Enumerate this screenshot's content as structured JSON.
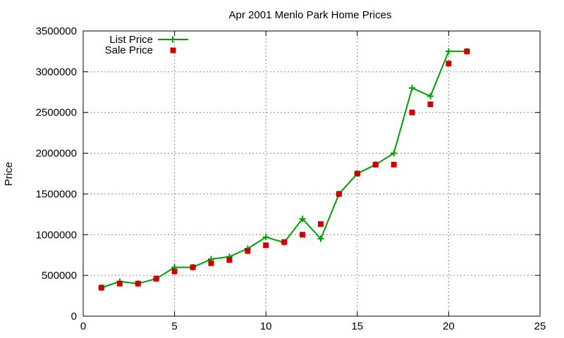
{
  "chart_data": {
    "type": "line",
    "title": "Apr 2001 Menlo Park Home Prices",
    "xlabel": "",
    "ylabel": "Price",
    "xlim": [
      0,
      25
    ],
    "ylim": [
      0,
      3500000
    ],
    "x_ticks": [
      0,
      5,
      10,
      15,
      20,
      25
    ],
    "y_ticks": [
      0,
      500000,
      1000000,
      1500000,
      2000000,
      2500000,
      3000000,
      3500000
    ],
    "grid": true,
    "legend_position": "top-left",
    "series": [
      {
        "name": "List Price",
        "style": "line-with-plus-markers",
        "color": "#00a000",
        "x": [
          1,
          2,
          3,
          4,
          5,
          6,
          7,
          8,
          9,
          10,
          11,
          12,
          13,
          14,
          15,
          16,
          17,
          18,
          19,
          20,
          21
        ],
        "y": [
          350000,
          425000,
          400000,
          460000,
          600000,
          600000,
          700000,
          730000,
          830000,
          970000,
          905000,
          1195000,
          950000,
          1500000,
          1750000,
          1860000,
          2000000,
          2800000,
          2700000,
          3250000,
          3250000
        ]
      },
      {
        "name": "Sale Price",
        "style": "square-markers",
        "color": "#cc0000",
        "x": [
          1,
          2,
          3,
          4,
          5,
          6,
          7,
          8,
          9,
          10,
          11,
          12,
          13,
          14,
          15,
          16,
          17,
          18,
          19,
          20,
          21
        ],
        "y": [
          350000,
          400000,
          400000,
          460000,
          550000,
          600000,
          650000,
          690000,
          800000,
          870000,
          910000,
          1000000,
          1130000,
          1500000,
          1750000,
          1860000,
          1860000,
          2500000,
          2600000,
          3100000,
          3250000
        ]
      }
    ]
  }
}
